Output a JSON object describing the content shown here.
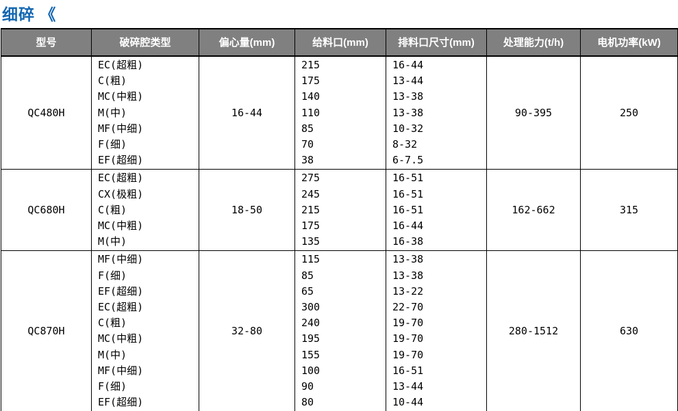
{
  "page": {
    "title": "细碎 《",
    "title_color": "#1467b1",
    "header_bg_color": "#808080",
    "header_text_color": "#ffffff",
    "border_color": "#000000"
  },
  "table": {
    "headers": [
      "型号",
      "破碎腔类型",
      "偏心量(mm)",
      "给料口(mm)",
      "排料口尺寸(mm)",
      "处理能力(t/h)",
      "电机功率(kW)"
    ],
    "rows": [
      {
        "model": "QC480H",
        "chamber_types": [
          "EC(超粗)",
          "C(粗)",
          "MC(中粗)",
          "M(中)",
          "MF(中细)",
          "F(细)",
          "EF(超细)"
        ],
        "eccentricity": "16-44",
        "feed_opening": [
          "215",
          "175",
          "140",
          "110",
          "85",
          "70",
          "38"
        ],
        "discharge_size": [
          "16-44",
          "13-44",
          "13-38",
          "13-38",
          "10-32",
          "8-32",
          "6-7.5"
        ],
        "capacity": "90-395",
        "motor_power": "250"
      },
      {
        "model": "QC680H",
        "chamber_types": [
          "EC(超粗)",
          "CX(极粗)",
          "C(粗)",
          "MC(中粗)",
          "M(中)"
        ],
        "eccentricity": "18-50",
        "feed_opening": [
          "275",
          "245",
          "215",
          "175",
          "135"
        ],
        "discharge_size": [
          "16-51",
          "16-51",
          "16-51",
          "16-44",
          "16-38"
        ],
        "capacity": "162-662",
        "motor_power": "315"
      },
      {
        "model": "QC870H",
        "chamber_types": [
          "MF(中细)",
          "F(细)",
          "EF(超细)",
          "EC(超粗)",
          "C(粗)",
          "MC(中粗)",
          "M(中)",
          "MF(中细)",
          "F(细)",
          "EF(超细)"
        ],
        "eccentricity": "32-80",
        "feed_opening": [
          "115",
          "85",
          "65",
          "300",
          "240",
          "195",
          "155",
          "100",
          "90",
          "80"
        ],
        "discharge_size": [
          "13-38",
          "13-38",
          "13-22",
          "22-70",
          "19-70",
          "19-70",
          "19-70",
          "16-51",
          "13-44",
          "10-44"
        ],
        "capacity": "280-1512",
        "motor_power": "630"
      }
    ]
  }
}
